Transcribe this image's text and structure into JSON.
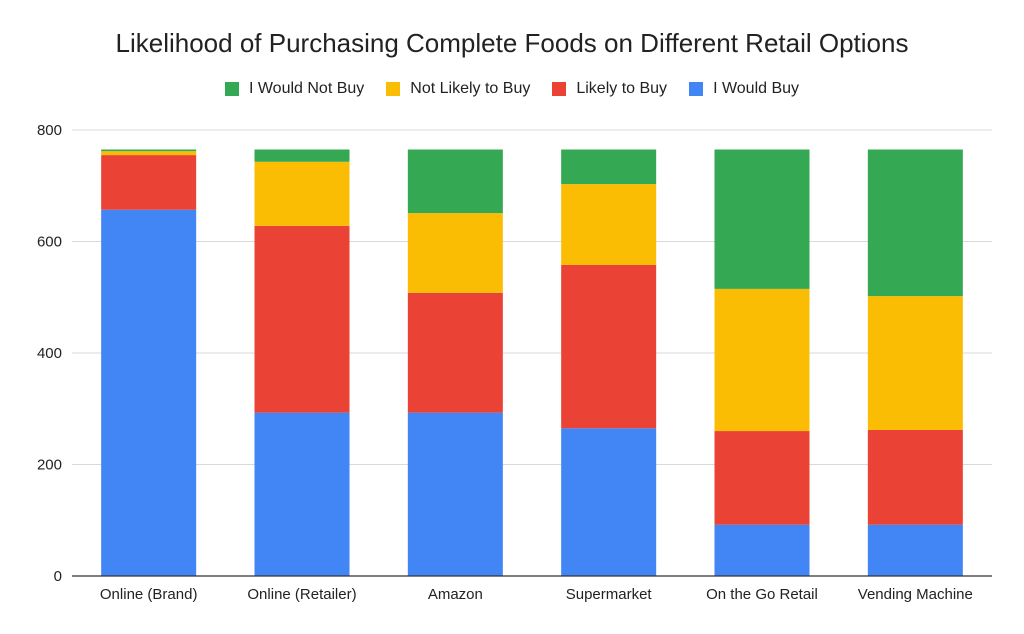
{
  "chart_data": {
    "type": "bar",
    "stacked": true,
    "title": "Likelihood of Purchasing Complete Foods on Different Retail Options",
    "xlabel": "",
    "ylabel": "",
    "ylim": [
      0,
      800
    ],
    "yticks": [
      0,
      200,
      400,
      600,
      800
    ],
    "grid": true,
    "legend_position": "top",
    "categories": [
      "Online (Brand)",
      "Online (Retailer)",
      "Amazon",
      "Supermarket",
      "On the Go Retail",
      "Vending Machine"
    ],
    "series": [
      {
        "name": "I Would Buy",
        "color": "#4285F4",
        "values": [
          657,
          293,
          293,
          265,
          92,
          92
        ]
      },
      {
        "name": "Likely to Buy",
        "color": "#EA4335",
        "values": [
          98,
          335,
          215,
          293,
          168,
          170
        ]
      },
      {
        "name": "Not Likely to Buy",
        "color": "#FBBC04",
        "values": [
          7,
          115,
          143,
          145,
          255,
          240
        ]
      },
      {
        "name": "I Would Not Buy",
        "color": "#34A853",
        "values": [
          3,
          22,
          114,
          62,
          250,
          263
        ]
      }
    ],
    "legend_order": [
      "I Would Not Buy",
      "Not Likely to Buy",
      "Likely to Buy",
      "I Would Buy"
    ]
  }
}
